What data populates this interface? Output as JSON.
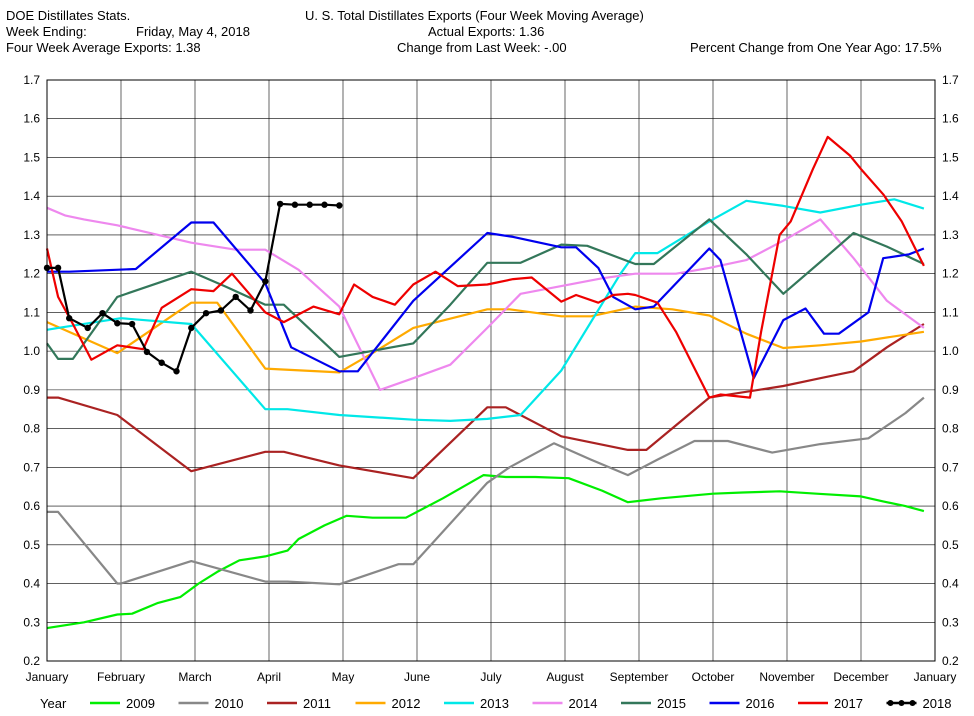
{
  "header": {
    "left_line1": "DOE Distillates Stats.",
    "left_line2_label": "Week Ending:",
    "left_line2_value": "Friday, May 4, 2018",
    "left_line3": "Four Week Average Exports: 1.38",
    "center_line1": "U. S. Total Distillates Exports (Four Week Moving Average)",
    "center_line2": "Actual Exports: 1.36",
    "center_line3": "Change from Last Week: -.00",
    "right_line3": "Percent Change from One Year Ago:  17.5%"
  },
  "legend": {
    "title": "Year"
  },
  "chart_data": {
    "type": "line",
    "title": "U. S. Total Distillates Exports (Four Week Moving Average)",
    "ylim": [
      0.2,
      1.7
    ],
    "yticks": [
      "0.2",
      "0.3",
      "0.4",
      "0.5",
      "0.6",
      "0.7",
      "0.8",
      "0.9",
      "1.0",
      "1.1",
      "1.2",
      "1.3",
      "1.4",
      "1.5",
      "1.6",
      "1.7"
    ],
    "xlim": [
      0,
      12
    ],
    "x_months": [
      "January",
      "February",
      "March",
      "April",
      "May",
      "June",
      "July",
      "August",
      "September",
      "October",
      "November",
      "December",
      "January"
    ],
    "grid": true,
    "legend_position": "bottom",
    "series": [
      {
        "name": "2009",
        "color": "#00ee00",
        "markers": false,
        "x": [
          0,
          0.5,
          0.95,
          1.15,
          1.5,
          1.8,
          2.05,
          2.3,
          2.6,
          2.95,
          3.25,
          3.4,
          3.75,
          4.05,
          4.4,
          4.85,
          5.35,
          5.9,
          6.2,
          6.6,
          7.05,
          7.5,
          7.85,
          8.3,
          9.0,
          9.4,
          9.9,
          10.4,
          11.0,
          11.3,
          11.6,
          11.85
        ],
        "y": [
          0.285,
          0.3,
          0.32,
          0.322,
          0.35,
          0.365,
          0.4,
          0.43,
          0.46,
          0.47,
          0.485,
          0.515,
          0.55,
          0.575,
          0.57,
          0.57,
          0.62,
          0.68,
          0.675,
          0.675,
          0.672,
          0.64,
          0.61,
          0.62,
          0.632,
          0.635,
          0.638,
          0.632,
          0.625,
          0.612,
          0.6,
          0.587
        ]
      },
      {
        "name": "2010",
        "color": "#888888",
        "markers": false,
        "x": [
          0,
          0.15,
          0.95,
          1.0,
          1.95,
          2.95,
          3.25,
          3.95,
          4.75,
          4.95,
          5.95,
          6.25,
          6.85,
          7.35,
          7.85,
          8.25,
          8.75,
          9.2,
          9.8,
          10.45,
          11.1,
          11.6,
          11.85
        ],
        "y": [
          0.585,
          0.585,
          0.4,
          0.4,
          0.458,
          0.405,
          0.405,
          0.398,
          0.45,
          0.45,
          0.66,
          0.7,
          0.762,
          0.72,
          0.68,
          0.72,
          0.768,
          0.768,
          0.738,
          0.76,
          0.775,
          0.84,
          0.88
        ]
      },
      {
        "name": "2011",
        "color": "#aa2222",
        "markers": false,
        "x": [
          0,
          0.15,
          0.95,
          1.95,
          2.95,
          3.2,
          3.95,
          4.95,
          5.95,
          6.2,
          6.95,
          7.85,
          8.1,
          8.95,
          9.95,
          10.45,
          10.9,
          11.35,
          11.85
        ],
        "y": [
          0.88,
          0.88,
          0.835,
          0.69,
          0.74,
          0.74,
          0.705,
          0.672,
          0.855,
          0.855,
          0.78,
          0.745,
          0.745,
          0.88,
          0.91,
          0.93,
          0.948,
          1.01,
          1.07
        ]
      },
      {
        "name": "2012",
        "color": "#ffaa00",
        "markers": false,
        "x": [
          0,
          0.95,
          1.95,
          2.3,
          2.95,
          3.95,
          4.4,
          4.95,
          5.95,
          6.25,
          6.95,
          7.35,
          7.95,
          8.45,
          8.95,
          9.45,
          9.95,
          10.45,
          11.0,
          11.85
        ],
        "y": [
          1.075,
          0.995,
          1.125,
          1.125,
          0.955,
          0.945,
          0.995,
          1.06,
          1.108,
          1.108,
          1.09,
          1.09,
          1.115,
          1.108,
          1.092,
          1.045,
          1.008,
          1.015,
          1.025,
          1.05
        ]
      },
      {
        "name": "2013",
        "color": "#00e8e8",
        "markers": false,
        "x": [
          0,
          0.15,
          1.0,
          1.95,
          2.95,
          3.25,
          3.95,
          4.95,
          5.45,
          5.95,
          6.4,
          6.95,
          7.75,
          7.95,
          8.25,
          8.95,
          9.45,
          9.95,
          10.45,
          11.0,
          11.45,
          11.85
        ],
        "y": [
          1.055,
          1.06,
          1.085,
          1.07,
          0.85,
          0.85,
          0.835,
          0.823,
          0.82,
          0.825,
          0.835,
          0.95,
          1.2,
          1.253,
          1.253,
          1.335,
          1.388,
          1.375,
          1.358,
          1.378,
          1.392,
          1.368
        ]
      },
      {
        "name": "2014",
        "color": "#ee88ee",
        "markers": false,
        "x": [
          0,
          0.25,
          0.5,
          0.95,
          1.95,
          2.55,
          2.95,
          3.4,
          3.95,
          4.5,
          4.95,
          5.45,
          5.95,
          6.4,
          6.95,
          7.5,
          7.95,
          8.5,
          8.95,
          9.45,
          9.95,
          10.45,
          10.9,
          11.35,
          11.85
        ],
        "y": [
          1.37,
          1.35,
          1.34,
          1.325,
          1.28,
          1.262,
          1.262,
          1.21,
          1.115,
          0.9,
          0.93,
          0.965,
          1.06,
          1.148,
          1.168,
          1.188,
          1.2,
          1.2,
          1.215,
          1.235,
          1.285,
          1.34,
          1.24,
          1.13,
          1.06
        ]
      },
      {
        "name": "2015",
        "color": "#33775a",
        "markers": false,
        "x": [
          0,
          0.15,
          0.35,
          0.95,
          1.95,
          2.4,
          2.95,
          3.2,
          3.95,
          4.95,
          5.45,
          5.95,
          6.4,
          6.95,
          7.3,
          7.95,
          8.2,
          8.95,
          9.45,
          9.95,
          10.45,
          10.9,
          11.35,
          11.85
        ],
        "y": [
          1.02,
          0.98,
          0.98,
          1.14,
          1.205,
          1.168,
          1.12,
          1.12,
          0.985,
          1.02,
          1.12,
          1.228,
          1.228,
          1.275,
          1.272,
          1.225,
          1.225,
          1.34,
          1.25,
          1.148,
          1.23,
          1.305,
          1.27,
          1.225
        ]
      },
      {
        "name": "2016",
        "color": "#0000ee",
        "markers": false,
        "x": [
          0,
          0.3,
          1.2,
          1.95,
          2.25,
          2.95,
          3.3,
          3.95,
          4.2,
          4.95,
          5.95,
          6.3,
          6.95,
          7.15,
          7.45,
          7.65,
          7.95,
          8.2,
          8.95,
          9.1,
          9.55,
          9.95,
          10.25,
          10.5,
          10.7,
          11.1,
          11.3,
          11.65,
          11.85
        ],
        "y": [
          1.205,
          1.205,
          1.212,
          1.332,
          1.332,
          1.175,
          1.01,
          0.948,
          0.948,
          1.13,
          1.305,
          1.295,
          1.268,
          1.268,
          1.215,
          1.14,
          1.108,
          1.115,
          1.265,
          1.235,
          0.93,
          1.08,
          1.11,
          1.045,
          1.045,
          1.1,
          1.24,
          1.25,
          1.265
        ]
      },
      {
        "name": "2017",
        "color": "#ee0000",
        "markers": false,
        "x": [
          0,
          0.15,
          0.35,
          0.6,
          0.95,
          1.3,
          1.55,
          1.95,
          2.25,
          2.5,
          2.95,
          3.2,
          3.6,
          3.95,
          4.15,
          4.4,
          4.7,
          4.95,
          5.25,
          5.55,
          5.95,
          6.3,
          6.55,
          6.95,
          7.15,
          7.45,
          7.65,
          7.85,
          7.95,
          8.25,
          8.5,
          8.95,
          9.1,
          9.5,
          9.65,
          9.9,
          10.05,
          10.35,
          10.55,
          10.85,
          11.0,
          11.3,
          11.55,
          11.85
        ],
        "y": [
          1.265,
          1.14,
          1.07,
          0.978,
          1.015,
          1.005,
          1.112,
          1.16,
          1.155,
          1.2,
          1.1,
          1.075,
          1.115,
          1.095,
          1.172,
          1.14,
          1.12,
          1.172,
          1.205,
          1.168,
          1.172,
          1.186,
          1.19,
          1.128,
          1.145,
          1.125,
          1.145,
          1.148,
          1.145,
          1.125,
          1.05,
          0.88,
          0.888,
          0.88,
          1.05,
          1.3,
          1.335,
          1.47,
          1.553,
          1.505,
          1.47,
          1.405,
          1.335,
          1.22
        ]
      },
      {
        "name": "2018",
        "color": "#000000",
        "markers": true,
        "x": [
          0,
          0.15,
          0.3,
          0.55,
          0.75,
          0.95,
          1.15,
          1.35,
          1.55,
          1.75,
          1.95,
          2.15,
          2.35,
          2.55,
          2.75,
          2.95,
          3.15,
          3.35,
          3.55,
          3.75,
          3.95
        ],
        "y": [
          1.215,
          1.215,
          1.085,
          1.06,
          1.098,
          1.072,
          1.07,
          0.998,
          0.97,
          0.948,
          1.06,
          1.098,
          1.105,
          1.14,
          1.105,
          1.18,
          1.38,
          1.378,
          1.378,
          1.378,
          1.376
        ]
      }
    ]
  }
}
